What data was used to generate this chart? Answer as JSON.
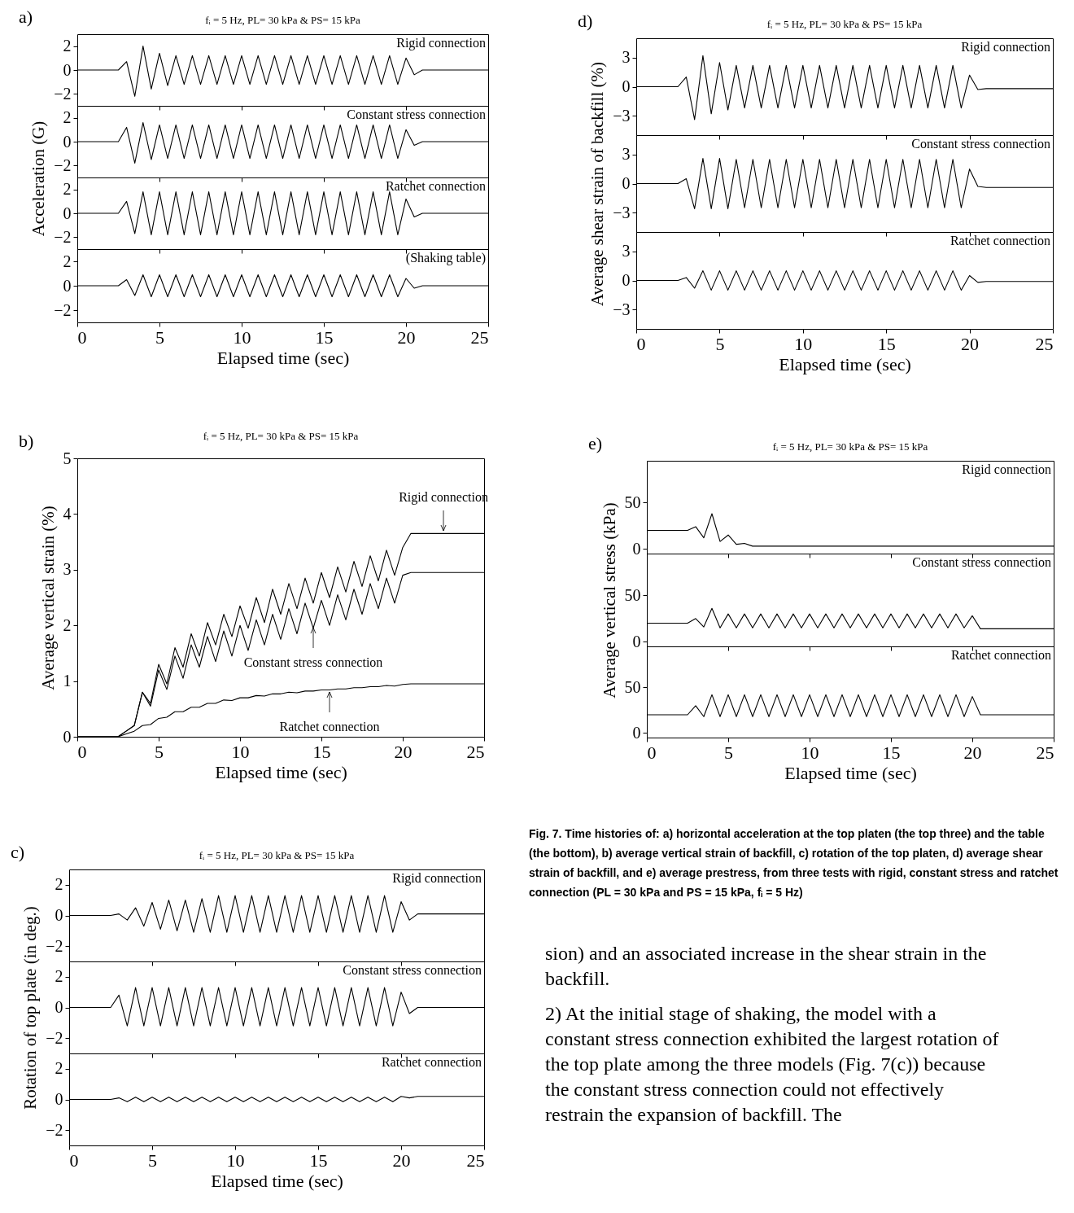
{
  "chart_data": [
    {
      "type": "line",
      "title": "fᵢ = 5 Hz, PL= 30 kPa & PS= 15 kPa",
      "annotations": [
        "a)"
      ],
      "tick_labels": "y",
      "xlim": [
        0,
        25
      ],
      "xticks": [
        0,
        5,
        10,
        15,
        20,
        25
      ],
      "ylim": [
        -3,
        3
      ],
      "yticks": [
        -2,
        0,
        2
      ],
      "x": [
        0,
        2,
        2.5,
        3,
        3.5,
        4,
        4.5,
        5,
        5.5,
        6,
        6.5,
        7,
        7.5,
        8,
        8.5,
        9,
        9.5,
        10,
        10.5,
        11,
        11.5,
        12,
        12.5,
        13,
        13.5,
        14,
        14.5,
        15,
        15.5,
        16,
        16.5,
        17,
        17.5,
        18,
        18.5,
        19,
        19.5,
        20,
        20.5,
        21,
        25
      ],
      "series": [
        {
          "name": "Rigid connection",
          "color": "#000000",
          "values": [
            0,
            0,
            0,
            0.7,
            -2.2,
            2.0,
            -1.6,
            1.4,
            -1.3,
            1.2,
            -1.2,
            1.2,
            -1.2,
            1.2,
            -1.2,
            1.2,
            -1.2,
            1.2,
            -1.2,
            1.2,
            -1.2,
            1.2,
            -1.2,
            1.2,
            -1.2,
            1.2,
            -1.2,
            1.2,
            -1.2,
            1.2,
            -1.2,
            1.2,
            -1.2,
            1.2,
            -1.2,
            1.2,
            -1.2,
            1.0,
            -0.4,
            0,
            0
          ]
        }
      ]
    },
    {
      "type": "line",
      "ylabel": "Acceleration (G)",
      "tick_labels": "y",
      "xlim": [
        0,
        25
      ],
      "xticks": [
        0,
        5,
        10,
        15,
        20,
        25
      ],
      "ylim": [
        -3,
        3
      ],
      "yticks": [
        -2,
        0,
        2
      ],
      "x": [
        0,
        2,
        2.5,
        3,
        3.5,
        4,
        4.5,
        5,
        5.5,
        6,
        6.5,
        7,
        7.5,
        8,
        8.5,
        9,
        9.5,
        10,
        10.5,
        11,
        11.5,
        12,
        12.5,
        13,
        13.5,
        14,
        14.5,
        15,
        15.5,
        16,
        16.5,
        17,
        17.5,
        18,
        18.5,
        19,
        19.5,
        20,
        20.5,
        21,
        25
      ],
      "series": [
        {
          "name": "Constant stress connection",
          "color": "#000000",
          "values": [
            0,
            0,
            0,
            1.2,
            -1.8,
            1.6,
            -1.5,
            1.4,
            -1.4,
            1.4,
            -1.4,
            1.4,
            -1.4,
            1.4,
            -1.4,
            1.4,
            -1.4,
            1.4,
            -1.4,
            1.4,
            -1.4,
            1.4,
            -1.4,
            1.4,
            -1.4,
            1.4,
            -1.4,
            1.4,
            -1.4,
            1.4,
            -1.4,
            1.4,
            -1.4,
            1.4,
            -1.4,
            1.4,
            -1.4,
            1.0,
            -0.3,
            0,
            0
          ]
        }
      ]
    },
    {
      "type": "line",
      "tick_labels": "y",
      "xlim": [
        0,
        25
      ],
      "xticks": [
        0,
        5,
        10,
        15,
        20,
        25
      ],
      "ylim": [
        -3,
        3
      ],
      "yticks": [
        -2,
        0,
        2
      ],
      "x": [
        0,
        2,
        2.5,
        3,
        3.5,
        4,
        4.5,
        5,
        5.5,
        6,
        6.5,
        7,
        7.5,
        8,
        8.5,
        9,
        9.5,
        10,
        10.5,
        11,
        11.5,
        12,
        12.5,
        13,
        13.5,
        14,
        14.5,
        15,
        15.5,
        16,
        16.5,
        17,
        17.5,
        18,
        18.5,
        19,
        19.5,
        20,
        20.5,
        21,
        25
      ],
      "series": [
        {
          "name": "Ratchet connection",
          "color": "#000000",
          "values": [
            0,
            0,
            0,
            1.0,
            -1.7,
            1.8,
            -1.8,
            1.8,
            -1.8,
            1.8,
            -1.8,
            1.8,
            -1.8,
            1.8,
            -1.8,
            1.8,
            -1.8,
            1.8,
            -1.8,
            1.8,
            -1.8,
            1.8,
            -1.8,
            1.8,
            -1.8,
            1.8,
            -1.8,
            1.8,
            -1.8,
            1.8,
            -1.8,
            1.8,
            -1.8,
            1.8,
            -1.8,
            1.8,
            -1.8,
            1.2,
            -0.3,
            0,
            0
          ]
        }
      ]
    },
    {
      "type": "line",
      "xlabel": "Elapsed time (sec)",
      "xlim": [
        0,
        25
      ],
      "xticks": [
        0,
        5,
        10,
        15,
        20,
        25
      ],
      "ylim": [
        -3,
        3
      ],
      "yticks": [
        -2,
        0,
        2
      ],
      "x": [
        0,
        2,
        2.5,
        3,
        3.5,
        4,
        4.5,
        5,
        5.5,
        6,
        6.5,
        7,
        7.5,
        8,
        8.5,
        9,
        9.5,
        10,
        10.5,
        11,
        11.5,
        12,
        12.5,
        13,
        13.5,
        14,
        14.5,
        15,
        15.5,
        16,
        16.5,
        17,
        17.5,
        18,
        18.5,
        19,
        19.5,
        20,
        20.5,
        21,
        25
      ],
      "series": [
        {
          "name": "(Shaking table)",
          "color": "#000000",
          "values": [
            0,
            0,
            0,
            0.5,
            -0.8,
            0.9,
            -0.9,
            0.9,
            -0.9,
            0.9,
            -0.9,
            0.9,
            -0.9,
            0.9,
            -0.9,
            0.9,
            -0.9,
            0.9,
            -0.9,
            0.9,
            -0.9,
            0.9,
            -0.9,
            0.9,
            -0.9,
            0.9,
            -0.9,
            0.9,
            -0.9,
            0.9,
            -0.9,
            0.9,
            -0.9,
            0.9,
            -0.9,
            0.9,
            -0.9,
            0.6,
            -0.2,
            0,
            0
          ]
        }
      ]
    },
    {
      "type": "line",
      "title": "fᵢ = 5 Hz, PL= 30 kPa & PS= 15 kPa",
      "annotations": [
        "b)",
        {
          "text": "Rigid connection",
          "x": 22.5,
          "y": 3.65
        },
        {
          "text": "Constant stress connection",
          "x": 14.5,
          "y": 2.0
        },
        {
          "text": "Ratchet connection",
          "x": 15.5,
          "y": 0.85
        }
      ],
      "xlabel": "Elapsed time (sec)",
      "ylabel": "Average vertical strain (%)",
      "xlim": [
        0,
        25
      ],
      "xticks": [
        0,
        5,
        10,
        15,
        20,
        25
      ],
      "ylim": [
        0,
        5
      ],
      "yticks": [
        0,
        1,
        2,
        3,
        4,
        5
      ],
      "x": [
        0,
        2,
        2.5,
        3,
        3.5,
        4,
        4.5,
        5,
        5.5,
        6,
        6.5,
        7,
        7.5,
        8,
        8.5,
        9,
        9.5,
        10,
        10.5,
        11,
        11.5,
        12,
        12.5,
        13,
        13.5,
        14,
        14.5,
        15,
        15.5,
        16,
        16.5,
        17,
        17.5,
        18,
        18.5,
        19,
        19.5,
        20,
        20.5,
        21,
        25
      ],
      "series": [
        {
          "color": "#000000",
          "values": [
            0,
            0,
            0,
            0.1,
            0.2,
            0.8,
            0.6,
            1.3,
            0.95,
            1.6,
            1.25,
            1.85,
            1.45,
            2.05,
            1.65,
            2.2,
            1.8,
            2.35,
            1.95,
            2.5,
            2.05,
            2.65,
            2.2,
            2.75,
            2.3,
            2.85,
            2.4,
            2.95,
            2.5,
            3.05,
            2.6,
            3.15,
            2.7,
            3.25,
            2.8,
            3.35,
            2.9,
            3.4,
            3.65,
            3.65,
            3.65
          ]
        },
        {
          "color": "#000000",
          "values": [
            0,
            0,
            0,
            0.1,
            0.2,
            0.8,
            0.55,
            1.2,
            0.85,
            1.45,
            1.05,
            1.65,
            1.25,
            1.8,
            1.35,
            1.9,
            1.45,
            2.0,
            1.55,
            2.1,
            1.65,
            2.2,
            1.75,
            2.3,
            1.85,
            2.4,
            1.95,
            2.45,
            2.0,
            2.55,
            2.1,
            2.65,
            2.2,
            2.75,
            2.3,
            2.85,
            2.4,
            2.9,
            2.95,
            2.95,
            2.95
          ]
        },
        {
          "color": "#000000",
          "values": [
            0,
            0,
            0,
            0.05,
            0.1,
            0.2,
            0.22,
            0.33,
            0.35,
            0.45,
            0.45,
            0.53,
            0.53,
            0.6,
            0.6,
            0.66,
            0.65,
            0.7,
            0.7,
            0.74,
            0.73,
            0.77,
            0.77,
            0.8,
            0.79,
            0.82,
            0.82,
            0.84,
            0.84,
            0.86,
            0.86,
            0.88,
            0.88,
            0.9,
            0.9,
            0.92,
            0.91,
            0.94,
            0.95,
            0.95,
            0.95
          ]
        }
      ]
    },
    {
      "type": "line",
      "title": "fᵢ = 5 Hz, PL= 30 kPa & PS= 15 kPa",
      "annotations": [
        "c)"
      ],
      "tick_labels": "y",
      "xlim": [
        0,
        25
      ],
      "xticks": [
        0,
        5,
        10,
        15,
        20,
        25
      ],
      "ylim": [
        -3,
        3
      ],
      "yticks": [
        -2,
        0,
        2
      ],
      "x": [
        0,
        2,
        2.5,
        3,
        3.5,
        4,
        4.5,
        5,
        5.5,
        6,
        6.5,
        7,
        7.5,
        8,
        8.5,
        9,
        9.5,
        10,
        10.5,
        11,
        11.5,
        12,
        12.5,
        13,
        13.5,
        14,
        14.5,
        15,
        15.5,
        16,
        16.5,
        17,
        17.5,
        18,
        18.5,
        19,
        19.5,
        20,
        20.5,
        21,
        25
      ],
      "series": [
        {
          "name": "Rigid connection",
          "color": "#000000",
          "values": [
            0,
            0,
            0,
            0.1,
            -0.3,
            0.5,
            -0.7,
            0.85,
            -0.9,
            1.0,
            -1.0,
            1.0,
            -1.1,
            1.1,
            -1.1,
            1.3,
            -1.1,
            1.3,
            -1.1,
            1.3,
            -1.1,
            1.3,
            -1.1,
            1.3,
            -1.1,
            1.3,
            -1.1,
            1.3,
            -1.1,
            1.3,
            -1.1,
            1.3,
            -1.1,
            1.3,
            -1.1,
            1.3,
            -1.1,
            0.9,
            -0.3,
            0.1,
            0.1
          ]
        }
      ]
    },
    {
      "type": "line",
      "ylabel": "Rotation of top plate (in deg.)",
      "tick_labels": "y",
      "xlim": [
        0,
        25
      ],
      "xticks": [
        0,
        5,
        10,
        15,
        20,
        25
      ],
      "ylim": [
        -3,
        3
      ],
      "yticks": [
        -2,
        0,
        2
      ],
      "x": [
        0,
        2,
        2.5,
        3,
        3.5,
        4,
        4.5,
        5,
        5.5,
        6,
        6.5,
        7,
        7.5,
        8,
        8.5,
        9,
        9.5,
        10,
        10.5,
        11,
        11.5,
        12,
        12.5,
        13,
        13.5,
        14,
        14.5,
        15,
        15.5,
        16,
        16.5,
        17,
        17.5,
        18,
        18.5,
        19,
        19.5,
        20,
        20.5,
        21,
        25
      ],
      "series": [
        {
          "name": "Constant stress connection",
          "color": "#000000",
          "values": [
            0,
            0,
            0,
            0.8,
            -1.2,
            1.3,
            -1.2,
            1.3,
            -1.2,
            1.3,
            -1.2,
            1.3,
            -1.2,
            1.3,
            -1.2,
            1.3,
            -1.2,
            1.3,
            -1.2,
            1.3,
            -1.2,
            1.3,
            -1.2,
            1.3,
            -1.2,
            1.3,
            -1.2,
            1.3,
            -1.2,
            1.3,
            -1.2,
            1.3,
            -1.2,
            1.3,
            -1.2,
            1.3,
            -1.2,
            1.0,
            -0.4,
            0,
            0
          ]
        }
      ]
    },
    {
      "type": "line",
      "xlabel": "Elapsed time (sec)",
      "xlim": [
        0,
        25
      ],
      "xticks": [
        0,
        5,
        10,
        15,
        20,
        25
      ],
      "ylim": [
        -3,
        3
      ],
      "yticks": [
        -2,
        0,
        2
      ],
      "x": [
        0,
        2,
        2.5,
        3,
        3.5,
        4,
        4.5,
        5,
        5.5,
        6,
        6.5,
        7,
        7.5,
        8,
        8.5,
        9,
        9.5,
        10,
        10.5,
        11,
        11.5,
        12,
        12.5,
        13,
        13.5,
        14,
        14.5,
        15,
        15.5,
        16,
        16.5,
        17,
        17.5,
        18,
        18.5,
        19,
        19.5,
        20,
        20.5,
        21,
        25
      ],
      "series": [
        {
          "name": "Ratchet connection",
          "color": "#000000",
          "values": [
            0,
            0,
            0,
            0.1,
            -0.15,
            0.15,
            -0.15,
            0.15,
            -0.15,
            0.15,
            -0.15,
            0.15,
            -0.15,
            0.15,
            -0.15,
            0.15,
            -0.15,
            0.15,
            -0.15,
            0.15,
            -0.15,
            0.15,
            -0.15,
            0.15,
            -0.15,
            0.15,
            -0.15,
            0.15,
            -0.15,
            0.15,
            -0.15,
            0.15,
            -0.15,
            0.15,
            -0.15,
            0.15,
            -0.15,
            0.2,
            0.1,
            0.2,
            0.2
          ]
        }
      ]
    },
    {
      "type": "line",
      "title": "fᵢ = 5 Hz, PL= 30 kPa & PS= 15 kPa",
      "annotations": [
        "d)"
      ],
      "tick_labels": "y",
      "xlim": [
        0,
        25
      ],
      "xticks": [
        0,
        5,
        10,
        15,
        20,
        25
      ],
      "ylim": [
        -5,
        5
      ],
      "yticks": [
        -3,
        0,
        3
      ],
      "x": [
        0,
        2,
        2.5,
        3,
        3.5,
        4,
        4.5,
        5,
        5.5,
        6,
        6.5,
        7,
        7.5,
        8,
        8.5,
        9,
        9.5,
        10,
        10.5,
        11,
        11.5,
        12,
        12.5,
        13,
        13.5,
        14,
        14.5,
        15,
        15.5,
        16,
        16.5,
        17,
        17.5,
        18,
        18.5,
        19,
        19.5,
        20,
        20.5,
        21,
        25
      ],
      "series": [
        {
          "name": "Rigid connection",
          "color": "#000000",
          "values": [
            0,
            0,
            0,
            1.0,
            -3.4,
            3.2,
            -2.8,
            2.5,
            -2.4,
            2.2,
            -2.2,
            2.2,
            -2.2,
            2.2,
            -2.2,
            2.2,
            -2.2,
            2.2,
            -2.2,
            2.2,
            -2.2,
            2.2,
            -2.2,
            2.2,
            -2.2,
            2.2,
            -2.2,
            2.2,
            -2.2,
            2.2,
            -2.2,
            2.2,
            -2.2,
            2.2,
            -2.2,
            2.2,
            -2.2,
            1.2,
            -0.3,
            -0.2,
            -0.2
          ]
        }
      ]
    },
    {
      "type": "line",
      "ylabel": "Average shear strain of backfill (%)",
      "tick_labels": "y",
      "xlim": [
        0,
        25
      ],
      "xticks": [
        0,
        5,
        10,
        15,
        20,
        25
      ],
      "ylim": [
        -5,
        5
      ],
      "yticks": [
        -3,
        0,
        3
      ],
      "x": [
        0,
        2,
        2.5,
        3,
        3.5,
        4,
        4.5,
        5,
        5.5,
        6,
        6.5,
        7,
        7.5,
        8,
        8.5,
        9,
        9.5,
        10,
        10.5,
        11,
        11.5,
        12,
        12.5,
        13,
        13.5,
        14,
        14.5,
        15,
        15.5,
        16,
        16.5,
        17,
        17.5,
        18,
        18.5,
        19,
        19.5,
        20,
        20.5,
        21,
        25
      ],
      "series": [
        {
          "name": "Constant stress connection",
          "color": "#000000",
          "values": [
            0,
            0,
            0,
            0.5,
            -2.6,
            2.6,
            -2.6,
            2.6,
            -2.6,
            2.5,
            -2.5,
            2.5,
            -2.5,
            2.5,
            -2.5,
            2.5,
            -2.5,
            2.5,
            -2.5,
            2.5,
            -2.5,
            2.5,
            -2.5,
            2.5,
            -2.5,
            2.5,
            -2.5,
            2.5,
            -2.5,
            2.5,
            -2.5,
            2.5,
            -2.5,
            2.5,
            -2.5,
            2.5,
            -2.5,
            1.5,
            -0.3,
            -0.4,
            -0.4
          ]
        }
      ]
    },
    {
      "type": "line",
      "xlabel": "Elapsed time (sec)",
      "xlim": [
        0,
        25
      ],
      "xticks": [
        0,
        5,
        10,
        15,
        20,
        25
      ],
      "ylim": [
        -5,
        5
      ],
      "yticks": [
        -3,
        0,
        3
      ],
      "x": [
        0,
        2,
        2.5,
        3,
        3.5,
        4,
        4.5,
        5,
        5.5,
        6,
        6.5,
        7,
        7.5,
        8,
        8.5,
        9,
        9.5,
        10,
        10.5,
        11,
        11.5,
        12,
        12.5,
        13,
        13.5,
        14,
        14.5,
        15,
        15.5,
        16,
        16.5,
        17,
        17.5,
        18,
        18.5,
        19,
        19.5,
        20,
        20.5,
        21,
        25
      ],
      "series": [
        {
          "name": "Ratchet connection",
          "color": "#000000",
          "values": [
            0,
            0,
            0,
            0.3,
            -0.8,
            1.0,
            -1.0,
            1.0,
            -1.0,
            1.0,
            -1.0,
            1.0,
            -1.0,
            1.0,
            -1.0,
            1.0,
            -1.0,
            1.0,
            -1.0,
            1.0,
            -1.0,
            1.0,
            -1.0,
            1.0,
            -1.0,
            1.0,
            -1.0,
            1.0,
            -1.0,
            1.0,
            -1.0,
            1.0,
            -1.0,
            1.0,
            -1.0,
            1.0,
            -1.0,
            0.5,
            -0.2,
            -0.1,
            -0.1
          ]
        }
      ]
    },
    {
      "type": "line",
      "title": "fᵢ = 5 Hz, PL= 30 kPa & PS= 15 kPa",
      "annotations": [
        "e)"
      ],
      "tick_labels": "y",
      "xlim": [
        0,
        25
      ],
      "xticks": [
        0,
        5,
        10,
        15,
        20,
        25
      ],
      "ylim": [
        -5,
        95
      ],
      "yticks": [
        0,
        50
      ],
      "x": [
        0,
        2,
        2.5,
        3,
        3.5,
        4,
        4.5,
        5,
        5.5,
        6,
        6.5,
        7,
        7.5,
        8,
        8.5,
        9,
        9.5,
        10,
        10.5,
        11,
        11.5,
        12,
        12.5,
        13,
        13.5,
        14,
        14.5,
        15,
        15.5,
        16,
        16.5,
        17,
        17.5,
        18,
        18.5,
        19,
        19.5,
        20,
        20.5,
        21,
        25
      ],
      "series": [
        {
          "name": "Rigid connection",
          "color": "#000000",
          "values": [
            20,
            20,
            20,
            24,
            12,
            38,
            8,
            15,
            5,
            6,
            3,
            3,
            3,
            3,
            3,
            3,
            3,
            3,
            3,
            3,
            3,
            3,
            3,
            3,
            3,
            3,
            3,
            3,
            3,
            3,
            3,
            3,
            3,
            3,
            3,
            3,
            3,
            3,
            3,
            3,
            3
          ]
        }
      ]
    },
    {
      "type": "line",
      "ylabel": "Average vertical stress (kPa)",
      "tick_labels": "y",
      "xlim": [
        0,
        25
      ],
      "xticks": [
        0,
        5,
        10,
        15,
        20,
        25
      ],
      "ylim": [
        -5,
        95
      ],
      "yticks": [
        0,
        50
      ],
      "x": [
        0,
        2,
        2.5,
        3,
        3.5,
        4,
        4.5,
        5,
        5.5,
        6,
        6.5,
        7,
        7.5,
        8,
        8.5,
        9,
        9.5,
        10,
        10.5,
        11,
        11.5,
        12,
        12.5,
        13,
        13.5,
        14,
        14.5,
        15,
        15.5,
        16,
        16.5,
        17,
        17.5,
        18,
        18.5,
        19,
        19.5,
        20,
        20.5,
        21,
        25
      ],
      "series": [
        {
          "name": "Constant stress connection",
          "color": "#000000",
          "values": [
            20,
            20,
            20,
            25,
            16,
            36,
            15,
            30,
            15,
            30,
            15,
            30,
            15,
            30,
            15,
            30,
            15,
            30,
            15,
            30,
            15,
            30,
            15,
            30,
            15,
            30,
            15,
            30,
            15,
            30,
            15,
            30,
            15,
            30,
            15,
            30,
            15,
            28,
            14,
            14,
            14
          ]
        }
      ]
    },
    {
      "type": "line",
      "xlabel": "Elapsed time (sec)",
      "xlim": [
        0,
        25
      ],
      "xticks": [
        0,
        5,
        10,
        15,
        20,
        25
      ],
      "ylim": [
        -5,
        95
      ],
      "yticks": [
        0,
        50
      ],
      "x": [
        0,
        2,
        2.5,
        3,
        3.5,
        4,
        4.5,
        5,
        5.5,
        6,
        6.5,
        7,
        7.5,
        8,
        8.5,
        9,
        9.5,
        10,
        10.5,
        11,
        11.5,
        12,
        12.5,
        13,
        13.5,
        14,
        14.5,
        15,
        15.5,
        16,
        16.5,
        17,
        17.5,
        18,
        18.5,
        19,
        19.5,
        20,
        20.5,
        21,
        25
      ],
      "series": [
        {
          "name": "Ratchet connection",
          "color": "#000000",
          "values": [
            20,
            20,
            20,
            30,
            18,
            42,
            18,
            42,
            18,
            42,
            18,
            42,
            18,
            42,
            18,
            42,
            18,
            42,
            18,
            42,
            18,
            42,
            18,
            42,
            18,
            42,
            18,
            42,
            18,
            42,
            18,
            42,
            18,
            42,
            18,
            42,
            18,
            40,
            20,
            20,
            20
          ]
        }
      ]
    },
    {
      "type": "other",
      "annotations": [
        "Fig. 7.  Time histories of: a) horizontal acceleration at the top platen (the top three) and the table (the bottom), b) average vertical strain of backfill, c) rotation of the top platen, d) average shear strain of backfill, and e) average prestress, from three tests with rigid, constant stress and ratchet connection (PL = 30 kPa and PS = 15 kPa, fᵢ = 5 Hz)",
        "sion) and an associated increase in the shear strain in the backfill.",
        "2)  At the initial stage of shaking, the model with a constant stress connection exhibited the largest rotation of the top plate among the three models (Fig. 7(c)) because the constant stress connection could not effectively restrain the expansion of backfill. The"
      ]
    }
  ]
}
